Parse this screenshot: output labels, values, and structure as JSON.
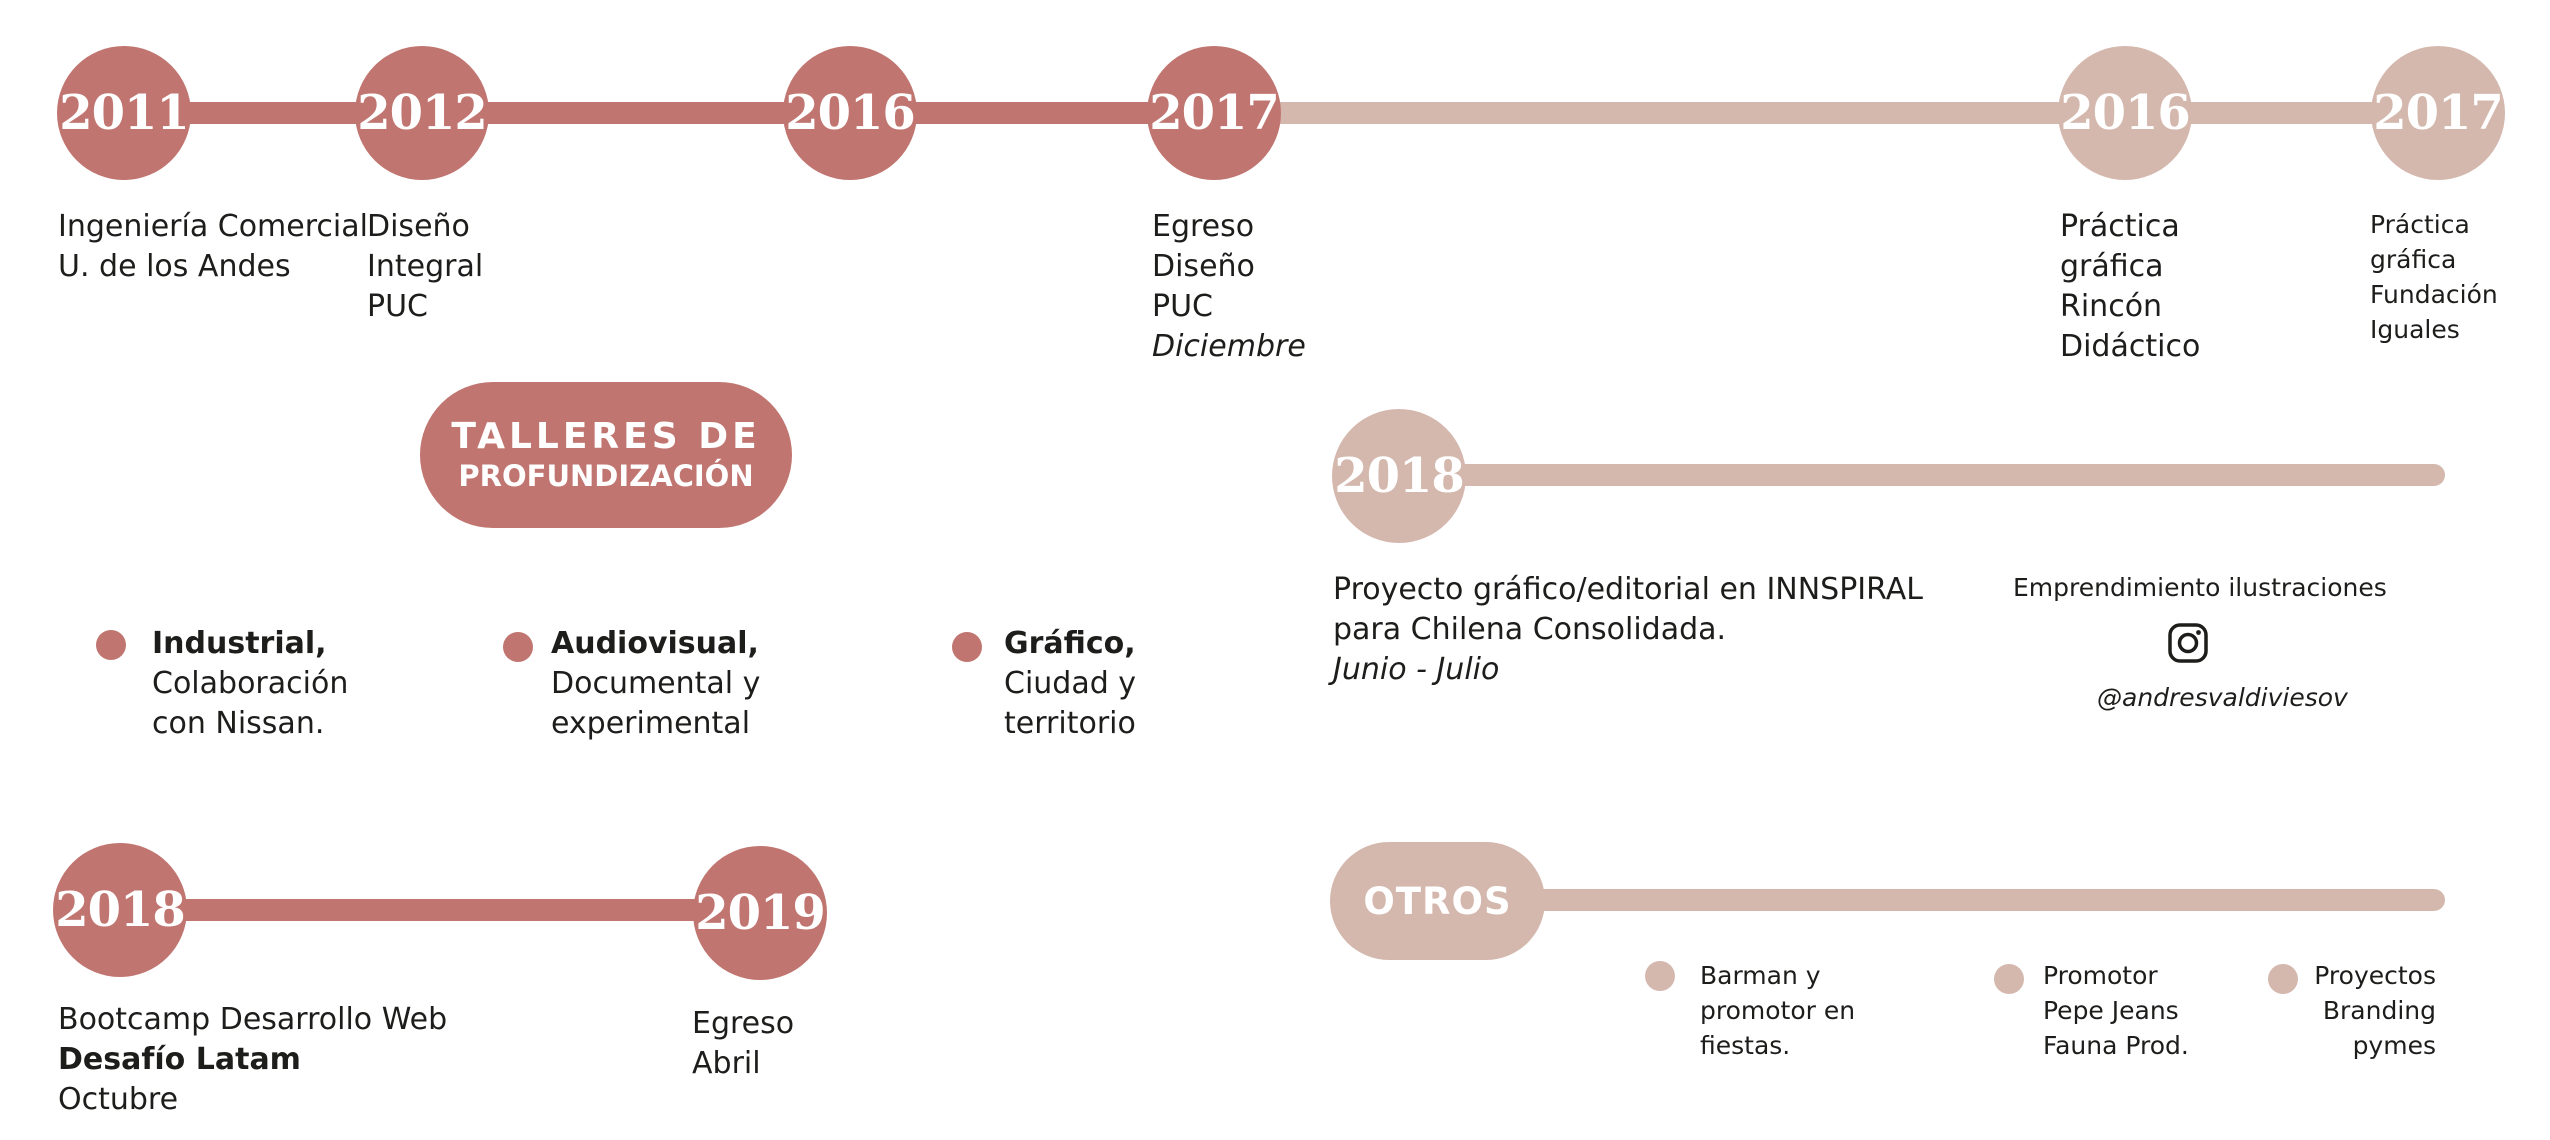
{
  "colors": {
    "dark": "#c17570",
    "light": "#d4b8ad",
    "text": "#1d1d1b"
  },
  "top": {
    "y2011": "2011",
    "y2012": "2012",
    "y2016": "2016",
    "y2017": "2017",
    "y2016b": "2016",
    "y2017b": "2017",
    "t2011": [
      "Ingeniería Comercial",
      "U. de los Andes"
    ],
    "t2012": [
      "Diseño",
      "Integral",
      "PUC"
    ],
    "t2017": [
      "Egreso",
      "Diseño",
      "PUC"
    ],
    "t2017_month": "Diciembre",
    "t2016b": [
      "Práctica",
      "gráfica",
      "Rincón",
      "Didáctico"
    ],
    "t2017b": [
      "Práctica",
      "gráfica",
      "Fundación",
      "Iguales"
    ]
  },
  "talleres": {
    "title1": "TALLERES DE",
    "title2": "PROFUNDIZACIÓN",
    "items": [
      {
        "head": "Industrial,",
        "lines": [
          "Colaboración",
          "con Nissan."
        ]
      },
      {
        "head": "Audiovisual,",
        "lines": [
          "Documental y",
          "experimental"
        ]
      },
      {
        "head": "Gráfico,",
        "lines": [
          "Ciudad y",
          "territorio"
        ]
      }
    ]
  },
  "mid": {
    "year": "2018",
    "project": [
      "Proyecto gráfico/editorial en INNSPIRAL",
      "para Chilena Consolidada."
    ],
    "project_dates": "Junio - Julio",
    "venture_title": "Emprendimiento ilustraciones",
    "instagram_handle": "@andresvaldiviesov",
    "instagram_icon": "instagram-icon"
  },
  "bottom": {
    "y2018": "2018",
    "y2019": "2019",
    "bootcamp": "Bootcamp Desarrollo Web",
    "bootcamp_org": "Desafío Latam",
    "bootcamp_month": "Octubre",
    "egreso": [
      "Egreso",
      "Abril"
    ]
  },
  "otros": {
    "title": "OTROS",
    "items": [
      {
        "lines": [
          "Barman y",
          "promotor en",
          "fiestas."
        ]
      },
      {
        "lines": [
          "Promotor",
          "Pepe Jeans",
          "Fauna Prod."
        ]
      },
      {
        "lines": [
          "Proyectos",
          "Branding",
          "pymes"
        ]
      }
    ]
  }
}
